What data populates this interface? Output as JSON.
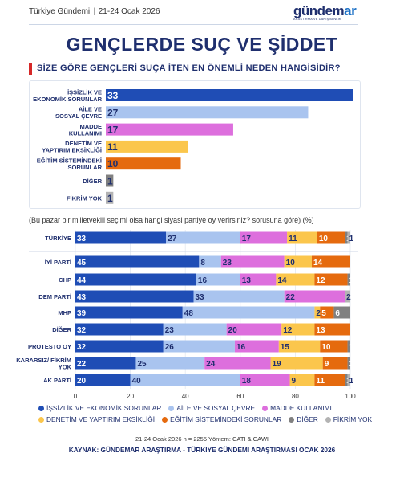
{
  "header": {
    "source_label": "Türkiye Gündemi",
    "date": "21-24 Ocak 2026",
    "brand": "gündemar",
    "brand_part1": "gündem",
    "brand_part2": "ar",
    "brand_tagline": "ARAŞTIRMA VE DANIŞMANLIK"
  },
  "title": "GENÇLERDE SUÇ VE ŞİDDET",
  "subtitle": "SİZE GÖRE GENÇLERİ SUÇA İTEN EN ÖNEMLİ NEDEN HANGİSİDİR?",
  "note": "(Bu pazar bir milletvekili seçimi olsa hangi siyasi partiye oy verirsiniz? sorusuna göre) (%)",
  "meta_line": "21-24 Ocak 2026 n = 2255 Yöntem: CATI & CAWI",
  "source_line": "KAYNAK: GÜNDEMAR ARAŞTIRMA - TÜRKİYE GÜNDEMİ ARAŞTIRMASI OCAK 2026",
  "chart_data": [
    {
      "type": "bar",
      "orientation": "horizontal",
      "categories": [
        "İŞSİZLİK VE EKONOMİK SORUNLAR",
        "AİLE VE SOSYAL ÇEVRE",
        "MADDE KULLANIMI",
        "DENETİM VE YAPTIRIM EKSİKLİĞİ",
        "EĞİTİM SİSTEMİNDEKİ SORUNLAR",
        "DİĞER",
        "FİKRİM YOK"
      ],
      "values": [
        33,
        27,
        17,
        11,
        10,
        1,
        1
      ],
      "colors": [
        "#1f4db5",
        "#a9c4ef",
        "#dd6fdd",
        "#fbc64c",
        "#e56a0e",
        "#808080",
        "#b3b3b3"
      ]
    },
    {
      "type": "bar",
      "orientation": "horizontal",
      "stacked": true,
      "xlim": [
        0,
        100
      ],
      "x_ticks": [
        "0",
        "20",
        "40",
        "60",
        "80",
        "100"
      ],
      "categories": [
        "TÜRKİYE",
        "İYİ PARTİ",
        "CHP",
        "DEM PARTİ",
        "MHP",
        "DİĞER",
        "PROTESTO OY",
        "KARARSIZ/ FİKRİM YOK",
        "AK PARTİ"
      ],
      "series": [
        {
          "name": "İŞSİZLİK VE EKONOMİK SORUNLAR",
          "color": "#1f4db5",
          "values": [
            33,
            45,
            44,
            43,
            39,
            32,
            32,
            22,
            20
          ]
        },
        {
          "name": "AİLE VE SOSYAL ÇEVRE",
          "color": "#a9c4ef",
          "values": [
            27,
            8,
            16,
            33,
            48,
            23,
            26,
            25,
            40
          ]
        },
        {
          "name": "MADDE KULLANIMI",
          "color": "#dd6fdd",
          "values": [
            17,
            23,
            13,
            22,
            0,
            20,
            16,
            24,
            18
          ]
        },
        {
          "name": "DENETİM VE YAPTIRIM EKSİKLİĞİ",
          "color": "#fbc64c",
          "values": [
            11,
            10,
            14,
            0,
            2,
            12,
            15,
            19,
            9
          ]
        },
        {
          "name": "EĞİTİM SİSTEMİNDEKİ SORUNLAR",
          "color": "#e56a0e",
          "values": [
            10,
            14,
            12,
            0,
            5,
            13,
            10,
            9,
            11
          ]
        },
        {
          "name": "DİĞER",
          "color": "#808080",
          "values": [
            1,
            0,
            1,
            0,
            6,
            0,
            1,
            1,
            1
          ]
        },
        {
          "name": "FİKRİM YOK",
          "color": "#b3b3b3",
          "values": [
            1,
            0,
            0,
            2,
            0,
            0,
            0,
            0,
            1
          ]
        }
      ]
    }
  ]
}
